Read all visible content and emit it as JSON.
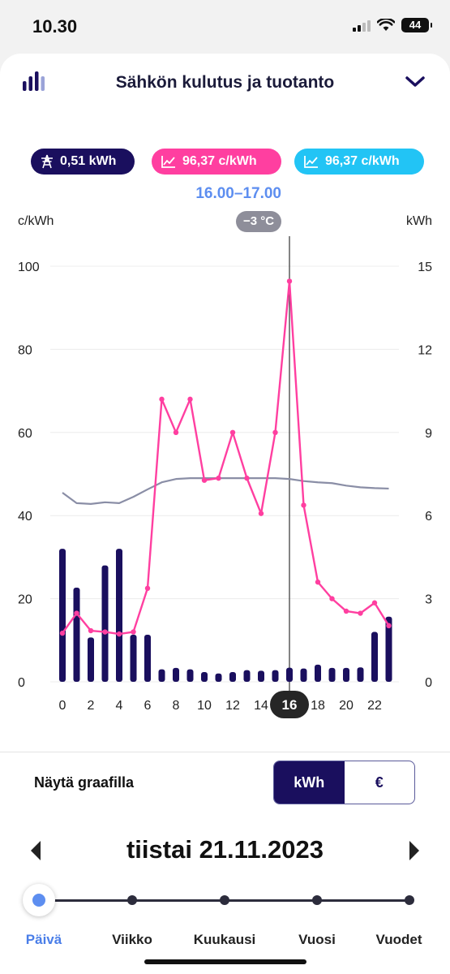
{
  "status_bar": {
    "time": "10.30",
    "battery": "44"
  },
  "header": {
    "title": "Sähkön kulutus ja tuotanto",
    "menu_icon": "bar-chart-icon",
    "expand_icon": "chevron-down-icon"
  },
  "pills": {
    "usage": {
      "icon": "power-tower-icon",
      "value": "0,51 kWh",
      "color": "#1a0f5e"
    },
    "price": {
      "icon": "line-chart-icon",
      "value": "96,37 c/kWh",
      "color": "#ff3fa0"
    },
    "price2": {
      "icon": "line-chart-icon",
      "value": "96,37 c/kWh",
      "color": "#22c4f5"
    }
  },
  "selection": {
    "time_range": "16.00–17.00",
    "temperature": "−3 °C",
    "hour_label": "16"
  },
  "axes": {
    "left_title": "c/kWh",
    "right_title": "kWh"
  },
  "chart_data": {
    "type": "bar",
    "x": [
      0,
      1,
      2,
      3,
      4,
      5,
      6,
      7,
      8,
      9,
      10,
      11,
      12,
      13,
      14,
      15,
      16,
      17,
      18,
      19,
      20,
      21,
      22,
      23
    ],
    "x_ticks": [
      "0",
      "2",
      "4",
      "6",
      "8",
      "10",
      "12",
      "14",
      "16",
      "18",
      "20",
      "22"
    ],
    "left_axis": {
      "title": "c/kWh",
      "ticks": [
        "0",
        "20",
        "40",
        "60",
        "80",
        "100"
      ],
      "range": [
        0,
        100
      ]
    },
    "right_axis": {
      "title": "kWh",
      "ticks": [
        "0",
        "3",
        "6",
        "9",
        "12",
        "15"
      ],
      "range": [
        0,
        15
      ]
    },
    "grid": "horizontal",
    "series": [
      {
        "type": "bar",
        "axis": "right",
        "color": "#1a0f5e",
        "values": [
          4.8,
          3.4,
          1.6,
          4.2,
          4.8,
          1.7,
          1.7,
          0.45,
          0.5,
          0.45,
          0.35,
          0.3,
          0.35,
          0.42,
          0.4,
          0.42,
          0.51,
          0.48,
          0.62,
          0.5,
          0.5,
          0.52,
          1.8,
          2.35
        ]
      },
      {
        "type": "line",
        "axis": "left",
        "color": "#ff3fa0",
        "values": [
          11.7,
          16.5,
          12.3,
          12,
          11.5,
          12,
          22.5,
          68,
          60,
          68,
          48.5,
          49,
          60,
          49,
          40.5,
          60,
          96.4,
          42.5,
          24,
          20,
          17,
          16.5,
          19,
          13.5
        ]
      },
      {
        "type": "line",
        "axis": "left",
        "color": "#8a8ea6",
        "values": [
          45.5,
          43,
          42.8,
          43.2,
          43,
          44.5,
          46.3,
          48,
          48.8,
          49,
          49,
          49,
          49,
          49,
          49,
          49,
          48.8,
          48.3,
          48,
          47.8,
          47.2,
          46.8,
          46.6,
          46.5
        ]
      }
    ],
    "selected_x": 16
  },
  "toggle": {
    "label": "Näytä graafilla",
    "options": [
      "kWh",
      "€"
    ],
    "selected": "kWh"
  },
  "date_nav": {
    "date": "tiistai 21.11.2023",
    "prev_icon": "chevron-left-icon",
    "next_icon": "chevron-right-icon"
  },
  "timeline": {
    "labels": [
      "Päivä",
      "Viikko",
      "Kuukausi",
      "Vuosi",
      "Vuodet"
    ],
    "selected": "Päivä"
  }
}
